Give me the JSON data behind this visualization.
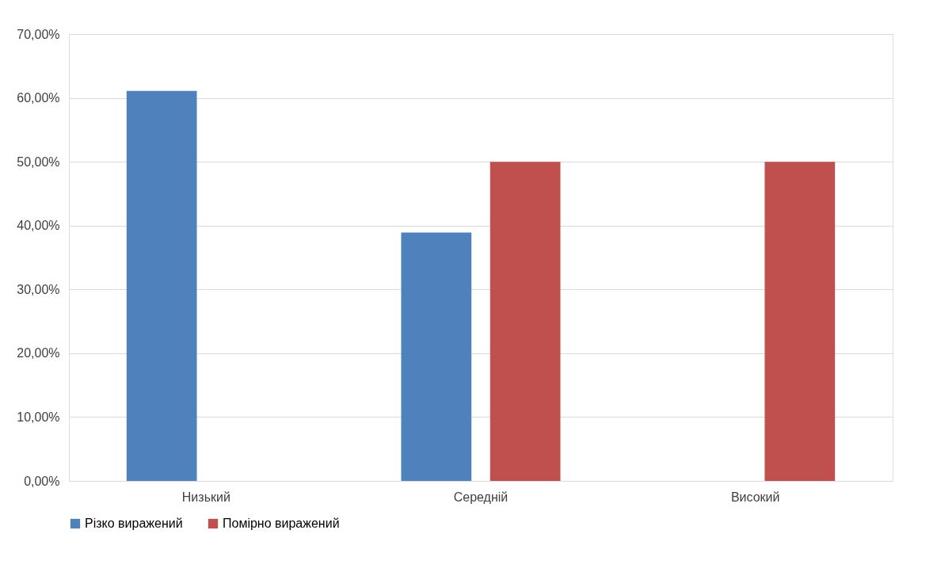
{
  "chart_data": {
    "type": "bar",
    "categories": [
      "Низький",
      "Середній",
      "Високий"
    ],
    "series": [
      {
        "name": "Різко виражений",
        "color": "#4f81bd",
        "values": [
          61.1,
          38.9,
          0
        ]
      },
      {
        "name": "Помірно виражений",
        "color": "#c0504d",
        "values": [
          0,
          50,
          50
        ]
      }
    ],
    "ylim": [
      0,
      70
    ],
    "yticks": [
      {
        "value": 0,
        "label": "0,00%"
      },
      {
        "value": 10,
        "label": "10,00%"
      },
      {
        "value": 20,
        "label": "20,00%"
      },
      {
        "value": 30,
        "label": "30,00%"
      },
      {
        "value": 40,
        "label": "40,00%"
      },
      {
        "value": 50,
        "label": "50,00%"
      },
      {
        "value": 60,
        "label": "60,00%"
      },
      {
        "value": 70,
        "label": "70,00%"
      }
    ],
    "grid": "y",
    "legend": "bottom"
  }
}
